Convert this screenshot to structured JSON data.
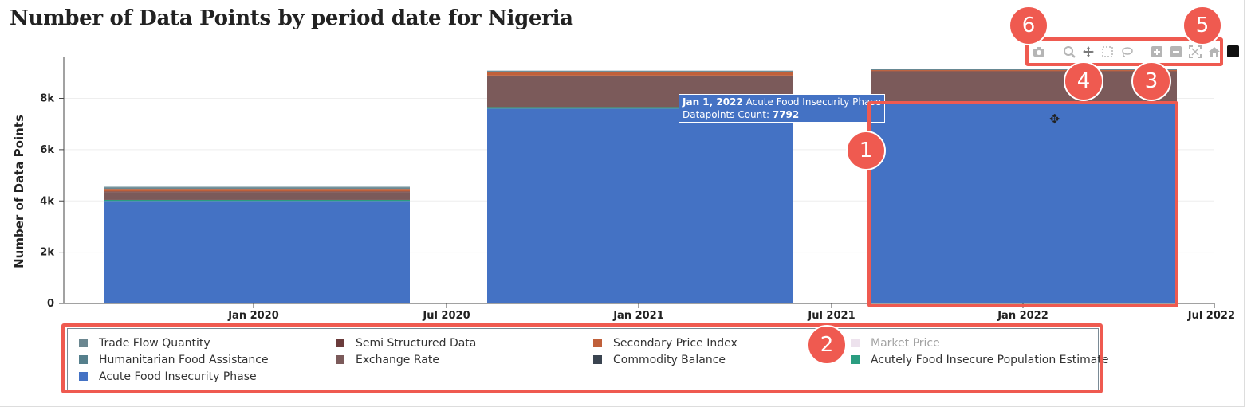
{
  "title": "Number of Data Points by period date for Nigeria",
  "chart_data": {
    "type": "bar",
    "stacked": true,
    "title": "Number of Data Points by period date for Nigeria",
    "ylabel": "Number of Data Points",
    "xlabel": "",
    "ylim": [
      0,
      9600
    ],
    "yticks": [
      0,
      2000,
      4000,
      6000,
      8000
    ],
    "ytick_labels": [
      "0",
      "2k",
      "4k",
      "6k",
      "8k"
    ],
    "xtick_labels": [
      "Jan 2020",
      "Jul 2020",
      "Jan 2021",
      "Jul 2021",
      "Jan 2022",
      "Jul 2022"
    ],
    "categories": [
      "Jan 2020",
      "Jan 2021",
      "Jan 2022"
    ],
    "series": [
      {
        "name": "Acute Food Insecurity Phase",
        "color": "#4472c4",
        "values": [
          4000,
          7600,
          7792
        ]
      },
      {
        "name": "Acutely Food Insecure Population Estimate",
        "color": "#2a9d80",
        "values": [
          40,
          60,
          40
        ]
      },
      {
        "name": "Exchange Rate",
        "color": "#7b5a5a",
        "values": [
          300,
          1200,
          1200
        ]
      },
      {
        "name": "Semi Structured Data",
        "color": "#6b3b3b",
        "values": [
          30,
          30,
          30
        ]
      },
      {
        "name": "Secondary Price Index",
        "color": "#c0603a",
        "values": [
          100,
          120,
          40
        ]
      },
      {
        "name": "Trade Flow Quantity",
        "color": "#6b8790",
        "values": [
          60,
          50,
          20
        ]
      },
      {
        "name": "Humanitarian Food Assistance",
        "color": "#557f8c",
        "values": [
          20,
          20,
          10
        ]
      },
      {
        "name": "Commodity Balance",
        "color": "#3a4450",
        "values": [
          0,
          0,
          0
        ]
      },
      {
        "name": "Market Price",
        "color": "#d8bfd8",
        "values": [
          0,
          0,
          0
        ]
      }
    ],
    "legend_position": "bottom"
  },
  "tooltip": {
    "date": "Jan 1, 2022",
    "series": "Acute Food Insecurity Phase",
    "count_label": "Datapoints Count:",
    "count_value": "7792"
  },
  "legend": [
    {
      "label": "Trade Flow Quantity",
      "color": "#6b8790",
      "dimmed": false
    },
    {
      "label": "Semi Structured Data",
      "color": "#6b3b3b",
      "dimmed": false
    },
    {
      "label": "Secondary Price Index",
      "color": "#c0603a",
      "dimmed": false
    },
    {
      "label": "Market Price",
      "color": "#d8bfd8",
      "dimmed": true
    },
    {
      "label": "Humanitarian Food Assistance",
      "color": "#557f8c",
      "dimmed": false
    },
    {
      "label": "Exchange Rate",
      "color": "#7b5a5a",
      "dimmed": false
    },
    {
      "label": "Commodity Balance",
      "color": "#3a4450",
      "dimmed": false
    },
    {
      "label": "Acutely Food Insecure Population Estimate",
      "color": "#2a9d80",
      "dimmed": false
    },
    {
      "label": "Acute Food Insecurity Phase",
      "color": "#4472c4",
      "dimmed": false
    }
  ],
  "modebar": [
    "camera-icon",
    "zoom-icon",
    "pan-icon",
    "box-select-icon",
    "lasso-icon",
    "zoom-in-icon",
    "zoom-out-icon",
    "autoscale-icon",
    "reset-axes-icon"
  ],
  "badges": [
    "1",
    "2",
    "3",
    "4",
    "5",
    "6"
  ],
  "colors": {
    "highlight": "#ef5a50",
    "bar_primary": "#4472c4"
  }
}
